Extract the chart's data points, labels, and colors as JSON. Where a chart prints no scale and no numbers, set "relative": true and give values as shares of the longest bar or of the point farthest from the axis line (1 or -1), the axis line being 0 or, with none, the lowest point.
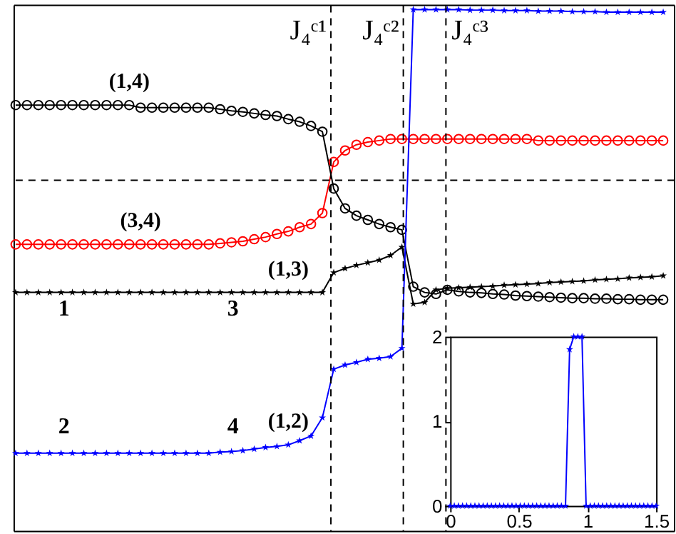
{
  "chart_data": [
    {
      "type": "line",
      "relative": true,
      "line_style": "solid",
      "categories": [
        null,
        null,
        null,
        null,
        null,
        null,
        null,
        null,
        null,
        null,
        null,
        null,
        null,
        null,
        null,
        null,
        null,
        null,
        null,
        null,
        null,
        null,
        null,
        null,
        null,
        null,
        null,
        null,
        null,
        null,
        null,
        null,
        null,
        null,
        null,
        null,
        null,
        null,
        null,
        null,
        null,
        null,
        null,
        null,
        null,
        null,
        null,
        null,
        null,
        null,
        null,
        null,
        null,
        null,
        null,
        null,
        null,
        null
      ],
      "series": [
        {
          "name": "(1,4)",
          "color": "#000000",
          "marker": "circle",
          "values": [
            0.817,
            0.817,
            0.817,
            0.817,
            0.817,
            0.817,
            0.817,
            0.817,
            0.817,
            0.817,
            0.817,
            0.812,
            0.812,
            0.812,
            0.812,
            0.812,
            0.812,
            0.812,
            0.809,
            0.806,
            0.804,
            0.801,
            0.798,
            0.796,
            0.79,
            0.785,
            0.777,
            0.766,
            0.657,
            0.619,
            0.605,
            0.597,
            0.589,
            0.583,
            0.578,
            0.469,
            0.458,
            0.455,
            0.463,
            0.46,
            0.458,
            0.457,
            0.455,
            0.454,
            0.452,
            0.451,
            0.45,
            0.449,
            0.448,
            0.447,
            0.447,
            0.446,
            0.446,
            0.445,
            0.445,
            0.444,
            0.444,
            0.444
          ]
        },
        {
          "name": "(3,4)",
          "color": "#ff0000",
          "marker": "circle",
          "values": [
            0.55,
            0.55,
            0.55,
            0.55,
            0.55,
            0.55,
            0.55,
            0.55,
            0.55,
            0.55,
            0.55,
            0.55,
            0.55,
            0.55,
            0.55,
            0.55,
            0.55,
            0.55,
            0.552,
            0.554,
            0.556,
            0.56,
            0.564,
            0.57,
            0.575,
            0.583,
            0.589,
            0.61,
            0.708,
            0.73,
            0.741,
            0.746,
            0.749,
            0.752,
            0.752,
            0.752,
            0.752,
            0.752,
            0.752,
            0.752,
            0.752,
            0.752,
            0.752,
            0.752,
            0.752,
            0.752,
            0.749,
            0.749,
            0.749,
            0.749,
            0.749,
            0.749,
            0.749,
            0.749,
            0.749,
            0.749,
            0.749,
            0.749
          ]
        },
        {
          "name": "(1,3)",
          "color": "#000000",
          "marker": "star",
          "values": [
            0.458,
            0.458,
            0.458,
            0.458,
            0.458,
            0.458,
            0.458,
            0.458,
            0.458,
            0.458,
            0.458,
            0.458,
            0.458,
            0.458,
            0.458,
            0.458,
            0.458,
            0.458,
            0.458,
            0.458,
            0.458,
            0.458,
            0.458,
            0.458,
            0.458,
            0.458,
            0.458,
            0.458,
            0.496,
            0.504,
            0.51,
            0.515,
            0.52,
            0.529,
            0.545,
            0.436,
            0.439,
            0.463,
            0.466,
            0.467,
            0.468,
            0.469,
            0.47,
            0.472,
            0.473,
            0.474,
            0.475,
            0.477,
            0.478,
            0.479,
            0.48,
            0.482,
            0.483,
            0.484,
            0.486,
            0.487,
            0.488,
            0.49
          ]
        },
        {
          "name": "(1,2)",
          "color": "#0000ff",
          "marker": "star",
          "values": [
            0.15,
            0.15,
            0.15,
            0.15,
            0.15,
            0.15,
            0.15,
            0.15,
            0.15,
            0.15,
            0.15,
            0.15,
            0.15,
            0.15,
            0.15,
            0.15,
            0.15,
            0.15,
            0.152,
            0.153,
            0.155,
            0.158,
            0.161,
            0.163,
            0.166,
            0.174,
            0.183,
            0.218,
            0.311,
            0.319,
            0.324,
            0.33,
            0.332,
            0.335,
            0.351,
            1.0,
            1.0,
            1.0,
            1.0,
            1.0,
            0.999,
            0.999,
            0.999,
            0.998,
            0.998,
            0.998,
            0.997,
            0.997,
            0.997,
            0.996,
            0.996,
            0.996,
            0.995,
            0.995,
            0.995,
            0.995,
            0.995,
            0.995
          ]
        }
      ],
      "ref_lines": [
        {
          "axis": "y",
          "value": 0.673,
          "line_style": "dashed",
          "color": "#000000"
        }
      ],
      "annotations": [
        "1",
        "2",
        "3",
        "4",
        "J₄ᶜ¹",
        "J₄ᶜ²",
        "J₄ᶜ³"
      ]
    },
    {
      "type": "line",
      "marker": "star",
      "line_style": "solid",
      "x": [
        0,
        0.03,
        0.06,
        0.09,
        0.12,
        0.15,
        0.18,
        0.21,
        0.24,
        0.27,
        0.3,
        0.33,
        0.36,
        0.39,
        0.42,
        0.45,
        0.48,
        0.51,
        0.54,
        0.57,
        0.6,
        0.63,
        0.66,
        0.69,
        0.72,
        0.75,
        0.78,
        0.81,
        0.84,
        0.87,
        0.9,
        0.93,
        0.96,
        0.99,
        1.02,
        1.05,
        1.08,
        1.11,
        1.14,
        1.17,
        1.2,
        1.23,
        1.26,
        1.29,
        1.32,
        1.35,
        1.38,
        1.41,
        1.44,
        1.47,
        1.5
      ],
      "series": [
        {
          "color": "#0000ff",
          "values": [
            0,
            0,
            0,
            0,
            0,
            0,
            0,
            0,
            0,
            0,
            0,
            0,
            0,
            0,
            0,
            0,
            0,
            0,
            0,
            0,
            0,
            0,
            0,
            0,
            0,
            0,
            0,
            0,
            0,
            1.85,
            2.0,
            2.0,
            2.0,
            0,
            0,
            0,
            0,
            0,
            0,
            0,
            0,
            0,
            0,
            0,
            0,
            0,
            0,
            0,
            0,
            0,
            0
          ]
        }
      ],
      "xlim": [
        0,
        1.5
      ],
      "xticks": [
        0,
        0.5,
        1,
        1.5
      ],
      "ylim": [
        0,
        2
      ],
      "yticks": [
        0,
        1,
        2
      ]
    }
  ]
}
